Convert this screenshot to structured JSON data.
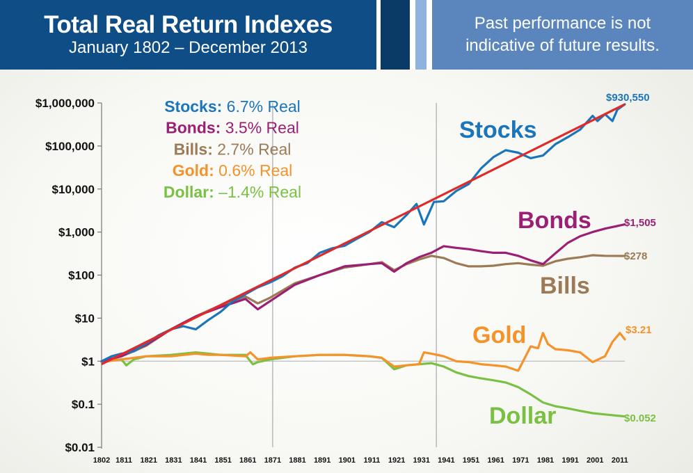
{
  "header": {
    "title": "Total Real Return Indexes",
    "subtitle": "January 1802 – December 2013",
    "disclaimer_line1": "Past performance is not",
    "disclaimer_line2": "indicative of future results."
  },
  "colors": {
    "stocks": "#1b75bb",
    "bonds": "#9b1f74",
    "bills": "#9c7a55",
    "gold": "#f5922a",
    "dollar": "#7ac143",
    "trend": "#e02a2a",
    "header_dark": "#0f4d86",
    "header_light": "#5a86bd"
  },
  "legend": {
    "stocks": {
      "name": "Stocks:",
      "value": "6.7% Real"
    },
    "bonds": {
      "name": "Bonds:",
      "value": "3.5% Real"
    },
    "bills": {
      "name": "Bills:",
      "value": "2.7% Real"
    },
    "gold": {
      "name": "Gold:",
      "value": "0.6% Real"
    },
    "dollar": {
      "name": "Dollar:",
      "value": "–1.4% Real"
    }
  },
  "chart_data": {
    "type": "line",
    "y_scale": "log",
    "ylim": [
      0.01,
      1000000
    ],
    "xlim": [
      1802,
      2013
    ],
    "y_ticks": [
      {
        "value": 0.01,
        "label": "$0.01"
      },
      {
        "value": 0.1,
        "label": "$0.1"
      },
      {
        "value": 1,
        "label": "$1"
      },
      {
        "value": 10,
        "label": "$10"
      },
      {
        "value": 100,
        "label": "$100"
      },
      {
        "value": 1000,
        "label": "$1,000"
      },
      {
        "value": 10000,
        "label": "$10,000"
      },
      {
        "value": 100000,
        "label": "$100,000"
      },
      {
        "value": 1000000,
        "label": "$1,000,000"
      }
    ],
    "x_ticks": [
      "1802",
      "1811",
      "1821",
      "1831",
      "1841",
      "1851",
      "1861",
      "1871",
      "1881",
      "1891",
      "1901",
      "1911",
      "1921",
      "1931",
      "1941",
      "1951",
      "1961",
      "1971",
      "1981",
      "1991",
      "2001",
      "2011"
    ],
    "vertical_lines": [
      1871,
      1937
    ],
    "series_labels": {
      "stocks": "Stocks",
      "bonds": "Bonds",
      "bills": "Bills",
      "gold": "Gold",
      "dollar": "Dollar"
    },
    "end_labels": {
      "stocks": "$930,550",
      "bonds": "$1,505",
      "bills": "$278",
      "gold": "$3.21",
      "dollar": "$0.052"
    },
    "trend": {
      "name": "Stocks trend",
      "x": [
        1802,
        2013
      ],
      "y": [
        0.85,
        930550
      ]
    },
    "series": [
      {
        "key": "stocks",
        "name": "Stocks",
        "x": [
          1802,
          1806,
          1810,
          1815,
          1820,
          1825,
          1830,
          1835,
          1840,
          1845,
          1850,
          1855,
          1860,
          1865,
          1870,
          1875,
          1880,
          1885,
          1890,
          1895,
          1900,
          1905,
          1910,
          1915,
          1920,
          1925,
          1929,
          1932,
          1936,
          1940,
          1945,
          1950,
          1955,
          1960,
          1965,
          1970,
          1975,
          1980,
          1985,
          1990,
          1995,
          2000,
          2002,
          2005,
          2008,
          2010,
          2013
        ],
        "y": [
          1,
          1.3,
          1.5,
          1.7,
          2.6,
          4,
          5.5,
          6.5,
          5.5,
          9,
          14,
          25,
          36,
          52,
          68,
          95,
          150,
          190,
          330,
          420,
          480,
          700,
          1000,
          1700,
          1300,
          2500,
          4500,
          1500,
          5000,
          5200,
          9000,
          13000,
          30000,
          55000,
          80000,
          70000,
          52000,
          60000,
          110000,
          160000,
          240000,
          500000,
          380000,
          550000,
          380000,
          700000,
          930550
        ]
      },
      {
        "key": "bonds",
        "name": "Bonds",
        "x": [
          1802,
          1810,
          1815,
          1820,
          1830,
          1840,
          1850,
          1860,
          1865,
          1870,
          1880,
          1890,
          1900,
          1910,
          1915,
          1920,
          1925,
          1930,
          1935,
          1940,
          1945,
          1950,
          1955,
          1960,
          1965,
          1970,
          1975,
          1980,
          1985,
          1990,
          1995,
          2000,
          2005,
          2013
        ],
        "y": [
          1,
          1.3,
          1.8,
          2.4,
          5.5,
          11,
          18,
          28,
          16,
          25,
          60,
          100,
          160,
          180,
          190,
          120,
          190,
          260,
          330,
          470,
          430,
          400,
          360,
          330,
          330,
          280,
          220,
          180,
          320,
          560,
          800,
          1000,
          1200,
          1505
        ]
      },
      {
        "key": "bills",
        "name": "Bills",
        "x": [
          1802,
          1810,
          1815,
          1820,
          1830,
          1840,
          1850,
          1860,
          1865,
          1870,
          1880,
          1890,
          1900,
          1910,
          1915,
          1920,
          1925,
          1930,
          1935,
          1940,
          1945,
          1950,
          1955,
          1960,
          1965,
          1970,
          1975,
          1980,
          1985,
          1990,
          1995,
          2000,
          2005,
          2013
        ],
        "y": [
          1,
          1.3,
          1.7,
          2.3,
          5.5,
          11,
          20,
          32,
          22,
          30,
          65,
          100,
          150,
          180,
          200,
          130,
          180,
          230,
          280,
          250,
          190,
          160,
          160,
          165,
          180,
          190,
          175,
          165,
          210,
          240,
          260,
          290,
          280,
          278
        ]
      },
      {
        "key": "gold",
        "name": "Gold",
        "x": [
          1802,
          1810,
          1815,
          1820,
          1830,
          1840,
          1845,
          1850,
          1860,
          1862,
          1865,
          1870,
          1880,
          1890,
          1900,
          1910,
          1915,
          1920,
          1925,
          1930,
          1932,
          1935,
          1940,
          1945,
          1950,
          1955,
          1960,
          1965,
          1970,
          1972,
          1975,
          1978,
          1980,
          1982,
          1985,
          1990,
          1995,
          2000,
          2005,
          2008,
          2011,
          2013
        ],
        "y": [
          0.95,
          1.1,
          1.2,
          1.3,
          1.3,
          1.5,
          1.4,
          1.4,
          1.3,
          1.6,
          1.1,
          1.2,
          1.3,
          1.4,
          1.4,
          1.3,
          1.2,
          0.75,
          0.8,
          0.85,
          1.6,
          1.5,
          1.3,
          1.0,
          0.95,
          0.85,
          0.8,
          0.75,
          0.6,
          1.0,
          2.2,
          2.0,
          4.5,
          2.5,
          1.9,
          1.8,
          1.6,
          0.95,
          1.3,
          2.8,
          4.5,
          3.21
        ]
      },
      {
        "key": "dollar",
        "name": "Dollar",
        "x": [
          1802,
          1810,
          1812,
          1815,
          1820,
          1830,
          1840,
          1845,
          1850,
          1860,
          1863,
          1865,
          1870,
          1880,
          1890,
          1900,
          1910,
          1915,
          1920,
          1925,
          1930,
          1935,
          1940,
          1945,
          1950,
          1955,
          1960,
          1965,
          1970,
          1975,
          1980,
          1985,
          1990,
          1995,
          2000,
          2005,
          2013
        ],
        "y": [
          1,
          1.1,
          0.8,
          1.1,
          1.3,
          1.4,
          1.6,
          1.5,
          1.4,
          1.4,
          0.85,
          0.95,
          1.1,
          1.3,
          1.4,
          1.4,
          1.3,
          1.2,
          0.65,
          0.8,
          0.85,
          0.9,
          0.75,
          0.55,
          0.45,
          0.4,
          0.36,
          0.32,
          0.25,
          0.17,
          0.11,
          0.09,
          0.08,
          0.07,
          0.062,
          0.058,
          0.052
        ]
      }
    ]
  }
}
